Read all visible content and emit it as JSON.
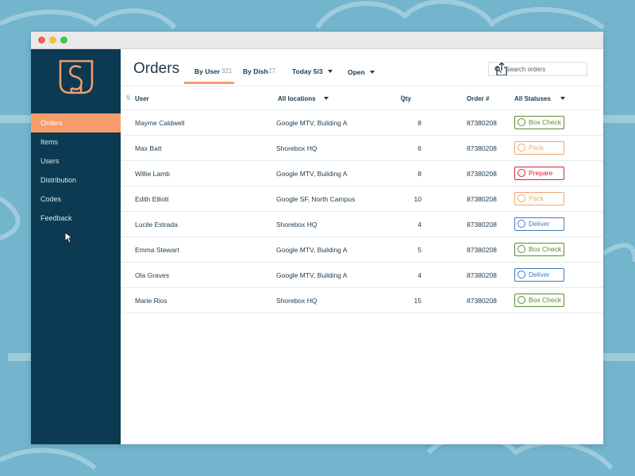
{
  "sidebar": {
    "nav": [
      "Orders",
      "Items",
      "Users",
      "Distribution",
      "Codes",
      "Feedback"
    ]
  },
  "header": {
    "title": "Orders",
    "tabs": [
      {
        "label": "By User",
        "count": 321
      },
      {
        "label": "By Dish",
        "count": 27
      }
    ],
    "filters": [
      "Today 5/3",
      "Open"
    ],
    "search_placeholder": "Search orders"
  },
  "table": {
    "columns": [
      "User",
      "All locations",
      "Qty",
      "Order #",
      "All Statuses"
    ],
    "rows": [
      {
        "user": "Mayme Caldwell",
        "location": "Google MTV, Building A",
        "qty": 8,
        "order": "87380208",
        "status": "Box Check",
        "status_color": "#5b8a2b"
      },
      {
        "user": "Max Batt",
        "location": "Shorebox HQ",
        "qty": 6,
        "order": "87380208",
        "status": "Pack",
        "status_color": "#f2a56c"
      },
      {
        "user": "Willie Lamb",
        "location": "Google MTV, Building A",
        "qty": 8,
        "order": "87380208",
        "status": "Prepare",
        "status_color": "#d2232f"
      },
      {
        "user": "Edith Elliott",
        "location": "Google SF, North Campus",
        "qty": 10,
        "order": "87380208",
        "status": "Pack",
        "status_color": "#f2a56c"
      },
      {
        "user": "Lucile Estrada",
        "location": "Shorebox HQ",
        "qty": 4,
        "order": "87380208",
        "status": "Deliver",
        "status_color": "#3b7bc2"
      },
      {
        "user": "Emma Stewart",
        "location": "Google MTV, Building A",
        "qty": 5,
        "order": "87380208",
        "status": "Box Check",
        "status_color": "#5b8a2b"
      },
      {
        "user": "Ola Graves",
        "location": "Google MTV, Building A",
        "qty": 4,
        "order": "87380208",
        "status": "Deliver",
        "status_color": "#3b7bc2"
      },
      {
        "user": "Marie Rios",
        "location": "Shorebox HQ",
        "qty": 15,
        "order": "87380208",
        "status": "Box Check",
        "status_color": "#5b8a2b"
      }
    ]
  }
}
